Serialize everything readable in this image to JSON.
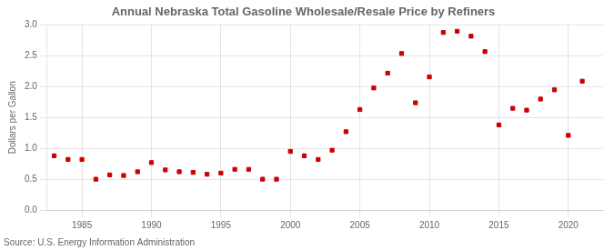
{
  "chart_data": {
    "type": "scatter",
    "title": "Annual Nebraska Total Gasoline Wholesale/Resale Price by Refiners",
    "ylabel": "Dollars per Gallon",
    "annotations": [
      "Source: U.S. Energy Information Administration"
    ],
    "color": "#cc0000",
    "marker": "square",
    "grid": true,
    "xlim": [
      1982.5,
      2022.5
    ],
    "ylim": [
      0.0,
      3.0
    ],
    "xticks": [
      1985,
      1990,
      1995,
      2000,
      2005,
      2010,
      2015,
      2020
    ],
    "yticks": [
      {
        "value": 0.0,
        "label": "0.0"
      },
      0.5,
      {
        "value": 1.0,
        "label": "1.0"
      },
      1.5,
      {
        "value": 2.0,
        "label": "2.0"
      },
      2.5,
      {
        "value": 3.0,
        "label": "3.0"
      }
    ],
    "x": [
      1983,
      1984,
      1985,
      1986,
      1987,
      1988,
      1989,
      1990,
      1991,
      1992,
      1993,
      1994,
      1995,
      1996,
      1997,
      1998,
      1999,
      2000,
      2001,
      2002,
      2003,
      2004,
      2005,
      2006,
      2007,
      2008,
      2009,
      2010,
      2011,
      2012,
      2013,
      2014,
      2015,
      2016,
      2017,
      2018,
      2019,
      2020,
      2021
    ],
    "values": [
      0.88,
      0.82,
      0.82,
      0.5,
      0.57,
      0.56,
      0.62,
      0.77,
      0.65,
      0.62,
      0.61,
      0.58,
      0.6,
      0.66,
      0.66,
      0.5,
      0.5,
      0.95,
      0.88,
      0.82,
      0.97,
      1.27,
      1.63,
      1.98,
      2.22,
      2.54,
      1.74,
      2.16,
      2.88,
      2.9,
      2.82,
      2.57,
      1.38,
      1.65,
      1.62,
      1.8,
      1.95,
      1.21,
      2.09
    ]
  }
}
